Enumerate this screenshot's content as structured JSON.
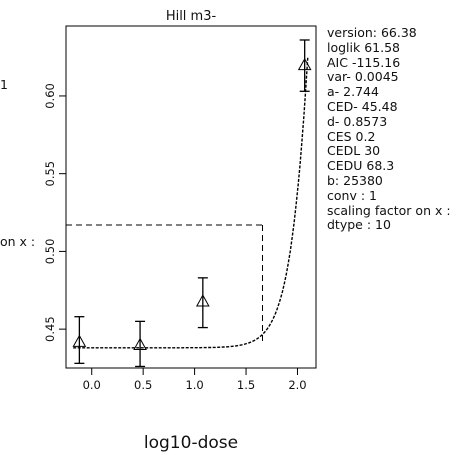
{
  "chart_data": {
    "type": "scatter",
    "title": "Hill m3-",
    "xlabel": "log10-dose",
    "ylabel": "",
    "xlim": [
      -0.25,
      2.18
    ],
    "ylim": [
      0.425,
      0.645
    ],
    "x_ticks": [
      {
        "value": 0.0,
        "label": "0.0"
      },
      {
        "value": 0.5,
        "label": "0.5"
      },
      {
        "value": 1.0,
        "label": "1.0"
      },
      {
        "value": 1.5,
        "label": "1.5"
      },
      {
        "value": 2.0,
        "label": "2.0"
      }
    ],
    "y_ticks": [
      {
        "value": 0.45,
        "label": "0.45"
      },
      {
        "value": 0.5,
        "label": "0.50"
      },
      {
        "value": 0.55,
        "label": "0.55"
      },
      {
        "value": 0.6,
        "label": "0.60"
      }
    ],
    "points": [
      {
        "x": -0.12,
        "y": 0.442,
        "ylow": 0.428,
        "yhigh": 0.458
      },
      {
        "x": 0.47,
        "y": 0.44,
        "ylow": 0.426,
        "yhigh": 0.455
      },
      {
        "x": 1.08,
        "y": 0.468,
        "ylow": 0.451,
        "yhigh": 0.483
      },
      {
        "x": 2.07,
        "y": 0.62,
        "ylow": 0.603,
        "yhigh": 0.636
      }
    ],
    "fit": {
      "c": 0.438,
      "a": 0.182,
      "x50": 2.25,
      "h": 3.3
    },
    "ced": {
      "x": 1.66,
      "y": 0.517
    }
  },
  "params": [
    "version: 66.38",
    "loglik   61.58",
    "AIC   -115.16",
    "var-   0.0045",
    "a-   2.744",
    "CED-    45.48",
    "d-   0.8573",
    "CES   0.2",
    "CEDL   30",
    "CEDU   68.3",
    "b:  25380",
    "conv :  1",
    "scaling factor on x :",
    "dtype :  10"
  ],
  "left_fragments": {
    "top": "1",
    "middle": "on x :"
  }
}
